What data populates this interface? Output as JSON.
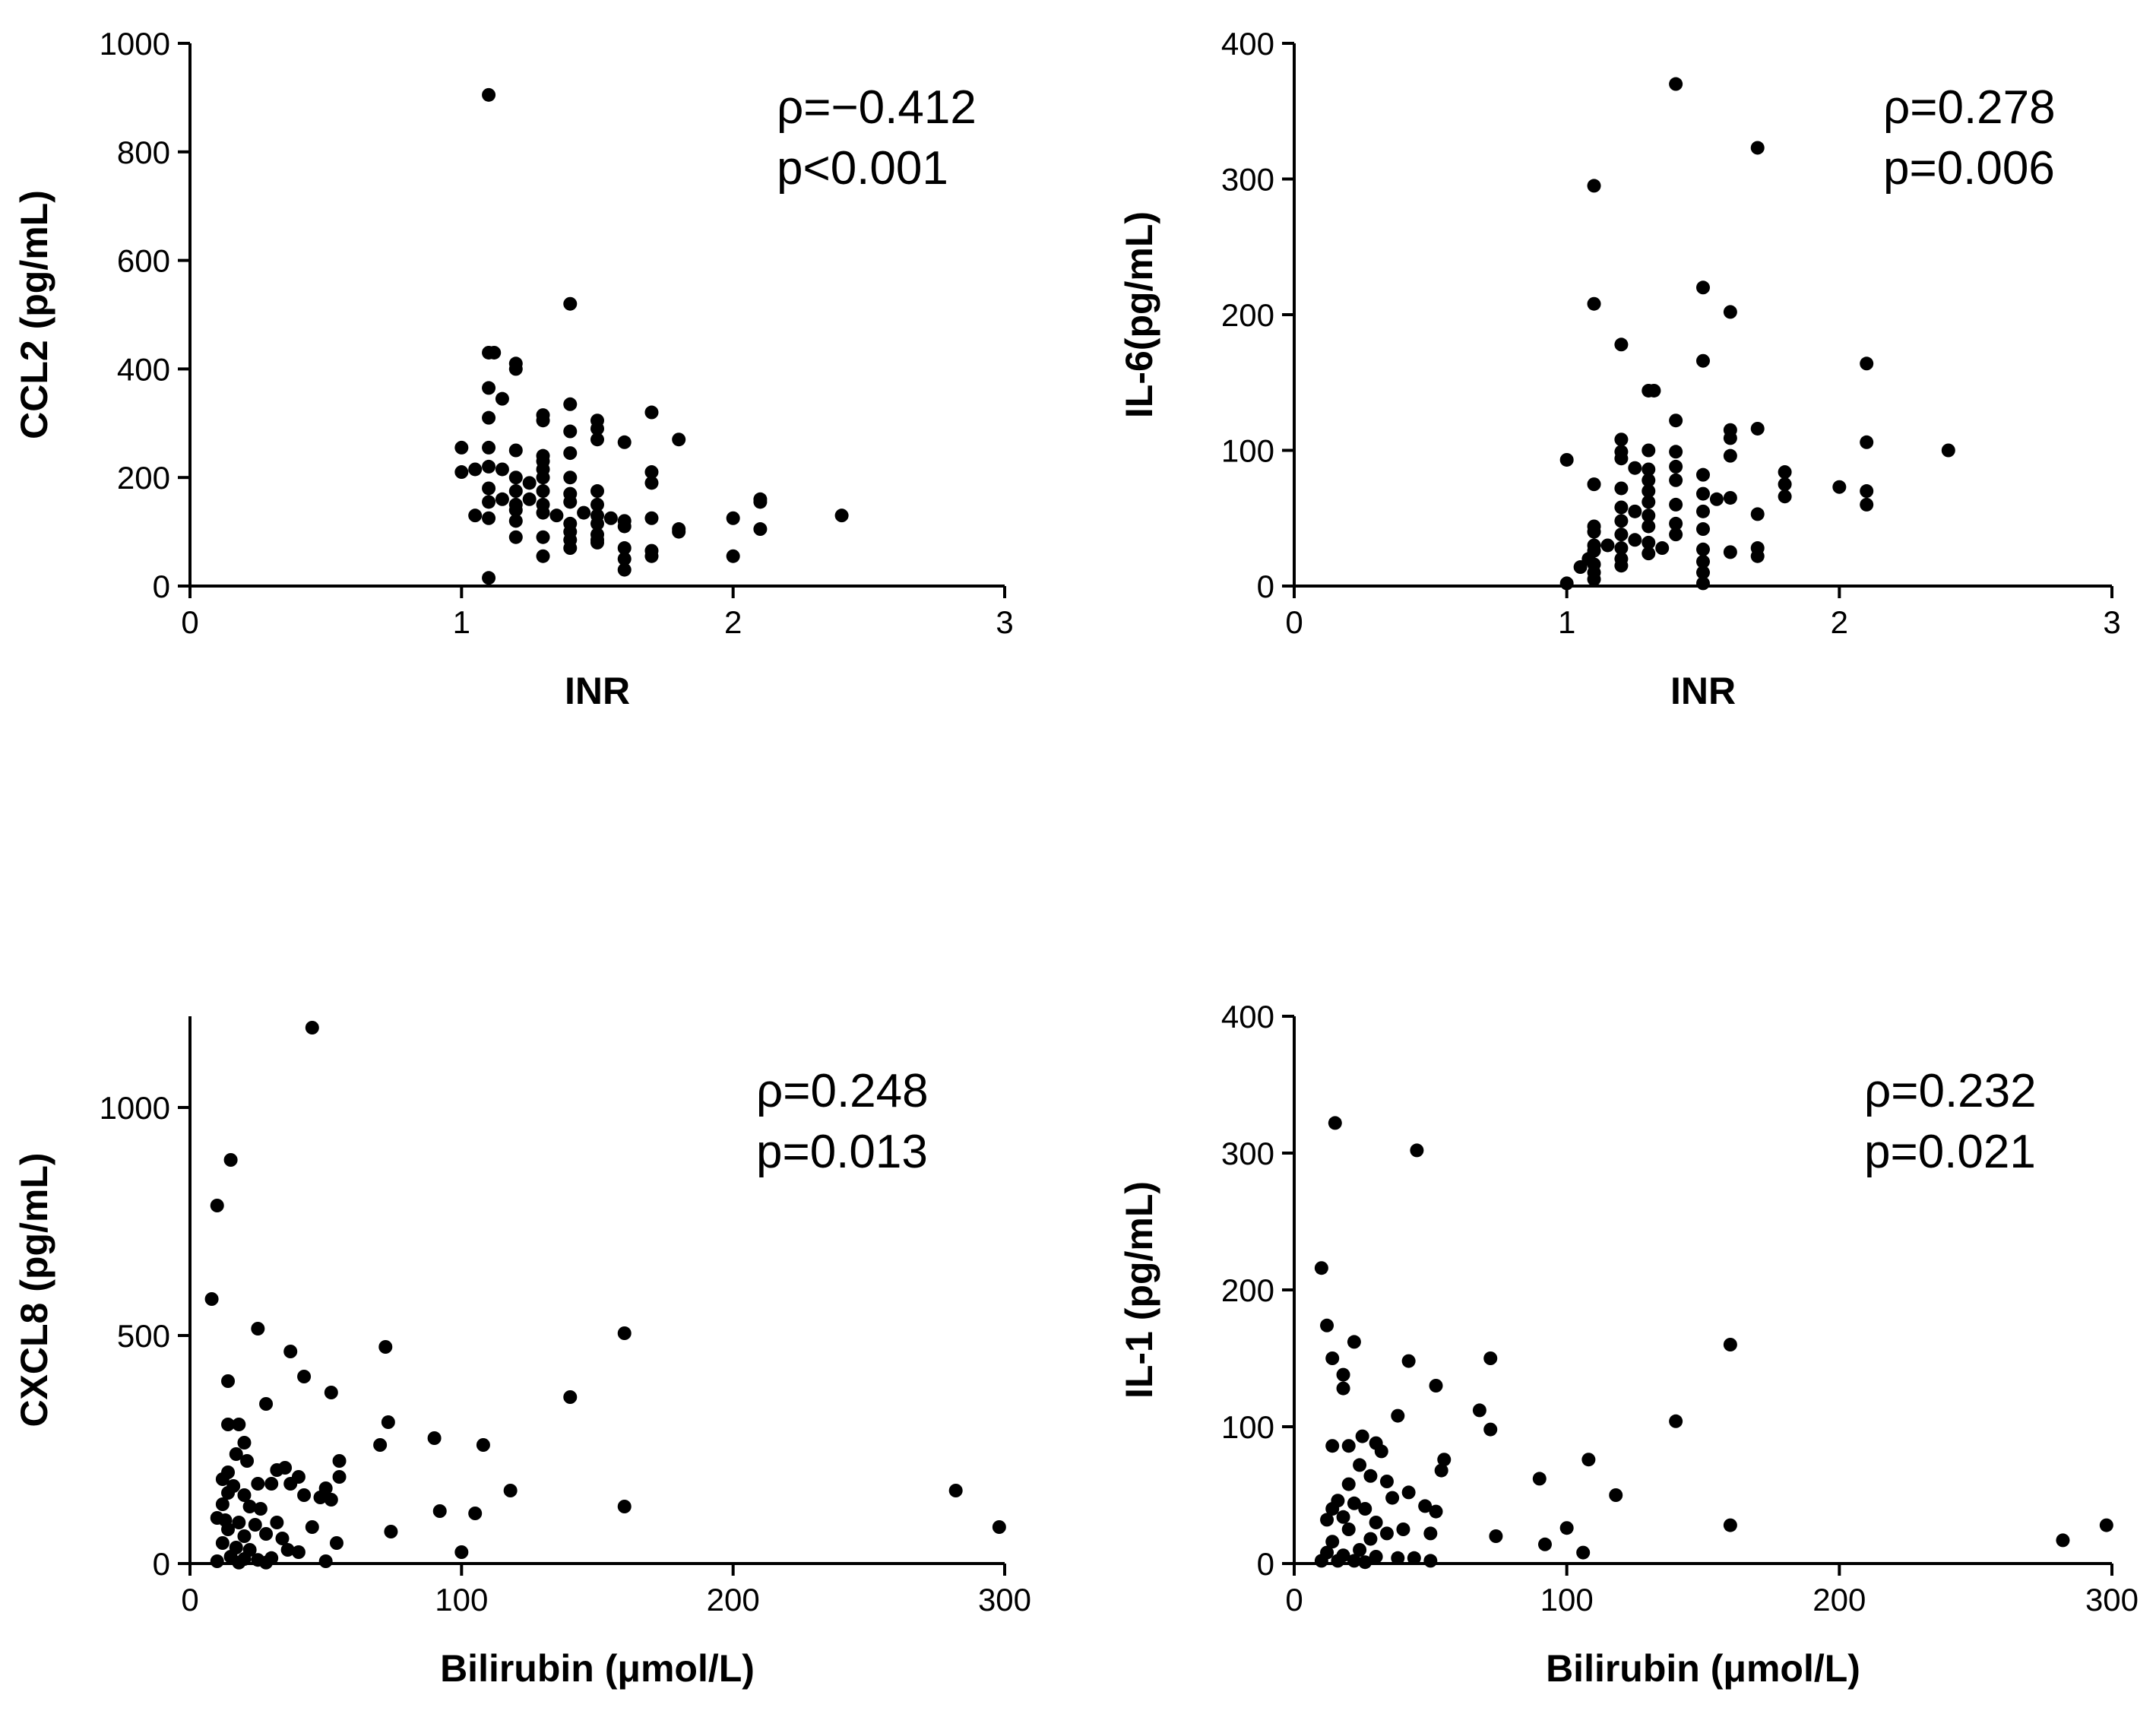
{
  "chart_data": [
    {
      "type": "scatter",
      "xlabel": "INR",
      "ylabel": "CCL2 (pg/mL)",
      "xlim": [
        0,
        3
      ],
      "ylim": [
        0,
        1000
      ],
      "xticks": [
        "0",
        "1",
        "2",
        "3"
      ],
      "yticks": [
        "0",
        "200",
        "400",
        "600",
        "800",
        "1000"
      ],
      "annotation": [
        "ρ=−0.412",
        "p<0.001"
      ],
      "grid": false,
      "points": [
        [
          1.1,
          905
        ],
        [
          1.4,
          520
        ],
        [
          1.1,
          430
        ],
        [
          1.12,
          430
        ],
        [
          1.2,
          410
        ],
        [
          1.2,
          400
        ],
        [
          1.1,
          365
        ],
        [
          1.15,
          345
        ],
        [
          1.4,
          335
        ],
        [
          1.3,
          315
        ],
        [
          1.7,
          320
        ],
        [
          1.3,
          305
        ],
        [
          1.1,
          310
        ],
        [
          1.5,
          305
        ],
        [
          1.5,
          290
        ],
        [
          1.4,
          285
        ],
        [
          1.5,
          270
        ],
        [
          1.8,
          270
        ],
        [
          1.6,
          265
        ],
        [
          1.0,
          255
        ],
        [
          1.1,
          255
        ],
        [
          1.2,
          250
        ],
        [
          1.4,
          245
        ],
        [
          1.3,
          240
        ],
        [
          1.3,
          230
        ],
        [
          1.1,
          220
        ],
        [
          1.05,
          215
        ],
        [
          1.15,
          215
        ],
        [
          1.0,
          210
        ],
        [
          1.3,
          215
        ],
        [
          1.7,
          210
        ],
        [
          1.2,
          200
        ],
        [
          1.3,
          200
        ],
        [
          1.4,
          200
        ],
        [
          1.25,
          190
        ],
        [
          1.7,
          190
        ],
        [
          1.1,
          180
        ],
        [
          1.2,
          175
        ],
        [
          1.3,
          175
        ],
        [
          1.5,
          175
        ],
        [
          1.4,
          170
        ],
        [
          1.15,
          160
        ],
        [
          1.1,
          155
        ],
        [
          1.25,
          160
        ],
        [
          1.4,
          155
        ],
        [
          1.2,
          150
        ],
        [
          1.3,
          150
        ],
        [
          1.5,
          150
        ],
        [
          2.1,
          160
        ],
        [
          2.1,
          155
        ],
        [
          1.05,
          130
        ],
        [
          1.1,
          125
        ],
        [
          1.2,
          140
        ],
        [
          1.3,
          135
        ],
        [
          1.35,
          130
        ],
        [
          1.45,
          135
        ],
        [
          1.5,
          130
        ],
        [
          1.55,
          125
        ],
        [
          1.6,
          120
        ],
        [
          2.4,
          130
        ],
        [
          1.2,
          120
        ],
        [
          1.4,
          115
        ],
        [
          1.5,
          115
        ],
        [
          1.7,
          125
        ],
        [
          2.0,
          125
        ],
        [
          1.6,
          110
        ],
        [
          1.8,
          105
        ],
        [
          1.4,
          100
        ],
        [
          1.5,
          95
        ],
        [
          1.8,
          100
        ],
        [
          2.1,
          105
        ],
        [
          1.2,
          90
        ],
        [
          1.3,
          90
        ],
        [
          1.4,
          85
        ],
        [
          1.5,
          85
        ],
        [
          1.6,
          70
        ],
        [
          1.4,
          70
        ],
        [
          1.7,
          65
        ],
        [
          1.3,
          55
        ],
        [
          1.6,
          50
        ],
        [
          1.7,
          55
        ],
        [
          2.0,
          55
        ],
        [
          1.5,
          80
        ],
        [
          1.6,
          30
        ],
        [
          1.1,
          15
        ]
      ]
    },
    {
      "type": "scatter",
      "xlabel": "INR",
      "ylabel": "IL-6(pg/mL)",
      "xlim": [
        0,
        3
      ],
      "ylim": [
        0,
        400
      ],
      "xticks": [
        "0",
        "1",
        "2",
        "3"
      ],
      "yticks": [
        "0",
        "100",
        "200",
        "300",
        "400"
      ],
      "annotation": [
        "ρ=0.278",
        "p=0.006"
      ],
      "grid": false,
      "points": [
        [
          1.4,
          370
        ],
        [
          1.7,
          323
        ],
        [
          1.1,
          295
        ],
        [
          1.5,
          220
        ],
        [
          1.1,
          208
        ],
        [
          1.6,
          202
        ],
        [
          1.2,
          178
        ],
        [
          1.5,
          166
        ],
        [
          2.1,
          164
        ],
        [
          1.3,
          144
        ],
        [
          1.32,
          144
        ],
        [
          1.4,
          122
        ],
        [
          1.6,
          115
        ],
        [
          1.7,
          116
        ],
        [
          1.6,
          109
        ],
        [
          1.2,
          108
        ],
        [
          2.1,
          106
        ],
        [
          1.2,
          99
        ],
        [
          1.3,
          100
        ],
        [
          1.4,
          99
        ],
        [
          2.4,
          100
        ],
        [
          1.6,
          96
        ],
        [
          1.0,
          93
        ],
        [
          1.2,
          94
        ],
        [
          1.4,
          88
        ],
        [
          1.25,
          87
        ],
        [
          1.3,
          86
        ],
        [
          1.8,
          84
        ],
        [
          1.5,
          82
        ],
        [
          1.4,
          78
        ],
        [
          1.3,
          78
        ],
        [
          1.1,
          75
        ],
        [
          1.2,
          72
        ],
        [
          1.3,
          70
        ],
        [
          1.8,
          75
        ],
        [
          2.0,
          73
        ],
        [
          2.1,
          70
        ],
        [
          1.5,
          68
        ],
        [
          1.6,
          65
        ],
        [
          1.3,
          62
        ],
        [
          1.4,
          60
        ],
        [
          1.55,
          64
        ],
        [
          1.8,
          66
        ],
        [
          1.2,
          58
        ],
        [
          2.1,
          60
        ],
        [
          1.25,
          55
        ],
        [
          1.3,
          52
        ],
        [
          1.5,
          55
        ],
        [
          1.7,
          53
        ],
        [
          1.2,
          48
        ],
        [
          1.4,
          46
        ],
        [
          1.1,
          44
        ],
        [
          1.3,
          44
        ],
        [
          1.5,
          42
        ],
        [
          1.1,
          40
        ],
        [
          1.2,
          38
        ],
        [
          1.4,
          38
        ],
        [
          1.25,
          34
        ],
        [
          1.3,
          32
        ],
        [
          1.15,
          30
        ],
        [
          1.1,
          30
        ],
        [
          1.2,
          28
        ],
        [
          1.35,
          28
        ],
        [
          1.5,
          27
        ],
        [
          1.7,
          28
        ],
        [
          1.1,
          26
        ],
        [
          1.6,
          25
        ],
        [
          1.3,
          24
        ],
        [
          1.7,
          22
        ],
        [
          1.08,
          20
        ],
        [
          1.2,
          20
        ],
        [
          1.5,
          18
        ],
        [
          1.1,
          16
        ],
        [
          1.2,
          15
        ],
        [
          1.05,
          14
        ],
        [
          1.1,
          10
        ],
        [
          1.5,
          10
        ],
        [
          1.1,
          5
        ],
        [
          1.0,
          2
        ],
        [
          1.5,
          2
        ]
      ]
    },
    {
      "type": "scatter",
      "xlabel": "Bilirubin (μmol/L)",
      "ylabel": "CXCL8 (pg/mL)",
      "xlim": [
        0,
        300
      ],
      "ylim": [
        0,
        1200
      ],
      "xticks": [
        "0",
        "100",
        "200",
        "300"
      ],
      "yticks": [
        "0",
        "500",
        "1000"
      ],
      "annotation": [
        "ρ=0.248",
        "p=0.013"
      ],
      "grid": false,
      "points": [
        [
          45,
          1175
        ],
        [
          15,
          885
        ],
        [
          10,
          785
        ],
        [
          8,
          580
        ],
        [
          25,
          515
        ],
        [
          160,
          505
        ],
        [
          37,
          465
        ],
        [
          72,
          475
        ],
        [
          42,
          410
        ],
        [
          14,
          400
        ],
        [
          52,
          375
        ],
        [
          140,
          365
        ],
        [
          28,
          350
        ],
        [
          14,
          305
        ],
        [
          18,
          305
        ],
        [
          73,
          310
        ],
        [
          20,
          265
        ],
        [
          90,
          275
        ],
        [
          70,
          260
        ],
        [
          108,
          260
        ],
        [
          17,
          240
        ],
        [
          21,
          225
        ],
        [
          55,
          225
        ],
        [
          14,
          200
        ],
        [
          32,
          205
        ],
        [
          35,
          210
        ],
        [
          40,
          190
        ],
        [
          55,
          190
        ],
        [
          12,
          185
        ],
        [
          25,
          175
        ],
        [
          30,
          175
        ],
        [
          37,
          175
        ],
        [
          16,
          170
        ],
        [
          50,
          165
        ],
        [
          118,
          160
        ],
        [
          282,
          160
        ],
        [
          14,
          155
        ],
        [
          20,
          150
        ],
        [
          42,
          150
        ],
        [
          48,
          145
        ],
        [
          52,
          140
        ],
        [
          12,
          130
        ],
        [
          22,
          125
        ],
        [
          26,
          120
        ],
        [
          160,
          125
        ],
        [
          92,
          115
        ],
        [
          105,
          110
        ],
        [
          10,
          100
        ],
        [
          13,
          95
        ],
        [
          18,
          90
        ],
        [
          24,
          85
        ],
        [
          32,
          90
        ],
        [
          45,
          80
        ],
        [
          74,
          70
        ],
        [
          298,
          80
        ],
        [
          14,
          75
        ],
        [
          20,
          60
        ],
        [
          28,
          65
        ],
        [
          34,
          55
        ],
        [
          54,
          45
        ],
        [
          12,
          45
        ],
        [
          17,
          35
        ],
        [
          22,
          30
        ],
        [
          36,
          30
        ],
        [
          40,
          25
        ],
        [
          100,
          25
        ],
        [
          15,
          15
        ],
        [
          20,
          10
        ],
        [
          25,
          8
        ],
        [
          30,
          12
        ],
        [
          50,
          5
        ],
        [
          10,
          5
        ],
        [
          18,
          2
        ],
        [
          28,
          2
        ]
      ]
    },
    {
      "type": "scatter",
      "xlabel": "Bilirubin (μmol/L)",
      "ylabel": "IL-1 (pg/mL)",
      "xlim": [
        0,
        300
      ],
      "ylim": [
        0,
        400
      ],
      "xticks": [
        "0",
        "100",
        "200",
        "300"
      ],
      "yticks": [
        "0",
        "100",
        "200",
        "300",
        "400"
      ],
      "annotation": [
        "ρ=0.232",
        "p=0.021"
      ],
      "grid": false,
      "points": [
        [
          15,
          322
        ],
        [
          45,
          302
        ],
        [
          10,
          216
        ],
        [
          12,
          174
        ],
        [
          22,
          162
        ],
        [
          160,
          160
        ],
        [
          14,
          150
        ],
        [
          42,
          148
        ],
        [
          72,
          150
        ],
        [
          18,
          138
        ],
        [
          52,
          130
        ],
        [
          18,
          128
        ],
        [
          68,
          112
        ],
        [
          38,
          108
        ],
        [
          140,
          104
        ],
        [
          72,
          98
        ],
        [
          25,
          93
        ],
        [
          30,
          88
        ],
        [
          14,
          86
        ],
        [
          20,
          86
        ],
        [
          32,
          82
        ],
        [
          55,
          76
        ],
        [
          108,
          76
        ],
        [
          24,
          72
        ],
        [
          54,
          68
        ],
        [
          28,
          64
        ],
        [
          34,
          60
        ],
        [
          20,
          58
        ],
        [
          90,
          62
        ],
        [
          42,
          52
        ],
        [
          118,
          50
        ],
        [
          36,
          48
        ],
        [
          16,
          46
        ],
        [
          22,
          44
        ],
        [
          14,
          40
        ],
        [
          48,
          42
        ],
        [
          26,
          40
        ],
        [
          52,
          38
        ],
        [
          18,
          34
        ],
        [
          12,
          32
        ],
        [
          30,
          30
        ],
        [
          160,
          28
        ],
        [
          298,
          28
        ],
        [
          100,
          26
        ],
        [
          40,
          25
        ],
        [
          20,
          25
        ],
        [
          34,
          22
        ],
        [
          50,
          22
        ],
        [
          74,
          20
        ],
        [
          28,
          18
        ],
        [
          14,
          16
        ],
        [
          282,
          17
        ],
        [
          92,
          14
        ],
        [
          24,
          10
        ],
        [
          106,
          8
        ],
        [
          12,
          8
        ],
        [
          18,
          6
        ],
        [
          30,
          5
        ],
        [
          38,
          4
        ],
        [
          44,
          4
        ],
        [
          50,
          2
        ],
        [
          10,
          2
        ],
        [
          16,
          2
        ],
        [
          22,
          2
        ],
        [
          26,
          1
        ]
      ]
    }
  ]
}
